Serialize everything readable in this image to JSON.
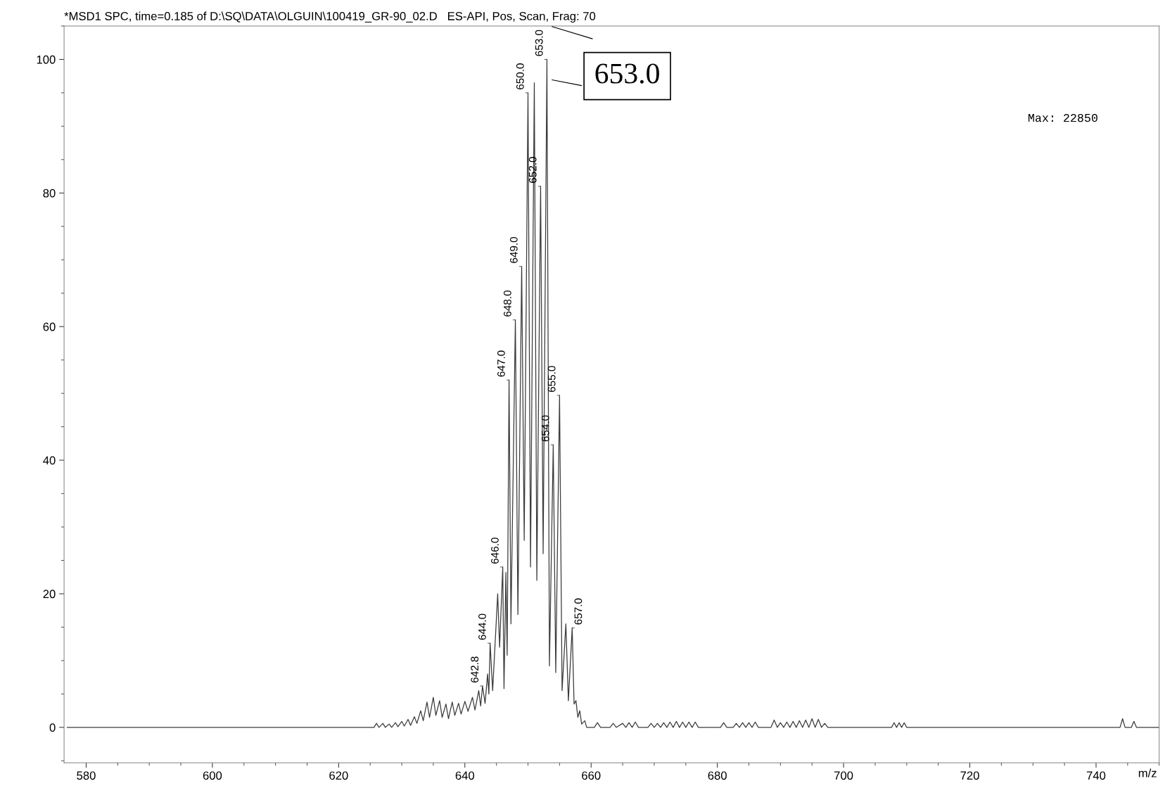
{
  "chart_data": {
    "type": "line",
    "title": "*MSD1 SPC, time=0.185 of D:\\SQ\\DATA\\OLGUIN\\100419_GR-90_02.D   ES-API, Pos, Scan, Frag: 70",
    "xlabel": "m/z",
    "x": [
      577,
      625.6,
      626,
      626.4,
      627,
      627.4,
      628,
      628.4,
      629,
      629.4,
      630,
      630.4,
      631,
      631.4,
      632,
      632.4,
      633,
      633.4,
      634,
      634.4,
      635,
      635.4,
      636,
      636.4,
      637,
      637.4,
      638,
      638.4,
      639,
      639.4,
      640,
      640.5,
      641.2,
      641.6,
      642.2,
      642.5,
      642.8,
      643.2,
      643.6,
      643.8,
      644.0,
      644.4,
      645.2,
      645.5,
      646.0,
      646.2,
      646.5,
      646.7,
      647.0,
      647.3,
      648.0,
      648.4,
      649.0,
      649.4,
      650.0,
      650.4,
      651.0,
      651.4,
      652.0,
      652.4,
      653.0,
      653.4,
      654.0,
      654.4,
      655.0,
      655.4,
      656.0,
      656.4,
      657.0,
      657.3,
      657.6,
      657.9,
      658.2,
      658.5,
      659.0,
      659.3,
      660.5,
      661,
      661.5,
      663,
      663.5,
      664,
      665,
      665.5,
      666,
      666.5,
      667,
      667.5,
      669,
      669.5,
      670,
      670.5,
      671,
      671.5,
      672,
      672.5,
      673,
      673.5,
      674,
      674.5,
      675,
      675.5,
      676,
      676.5,
      677,
      677.5,
      680.5,
      681,
      681.5,
      682.5,
      683,
      683.5,
      684,
      684.5,
      685,
      685.5,
      686,
      686.5,
      688.5,
      689,
      689.5,
      690,
      690.5,
      691,
      691.5,
      692,
      692.5,
      693,
      693.5,
      694,
      694.5,
      695,
      695.5,
      696,
      696.5,
      697,
      697.5,
      707.6,
      708,
      708.4,
      708.8,
      709.2,
      709.6,
      710,
      710.4,
      743.8,
      744.2,
      744.6,
      745.6,
      746,
      746.4,
      750
    ],
    "series": [
      {
        "color": "#3a3a3a",
        "values": [
          0,
          0,
          0.6,
          0,
          0.6,
          0,
          0.5,
          0,
          0.7,
          0.1,
          0.9,
          0.2,
          1.2,
          0.3,
          1.6,
          0.6,
          2.5,
          1,
          3.8,
          1.5,
          4.5,
          1.8,
          4,
          1.5,
          3.5,
          1.3,
          3.8,
          1.8,
          3.6,
          2,
          3.9,
          2.4,
          4.5,
          2.6,
          5.5,
          3.2,
          6.2,
          3.6,
          8,
          5,
          12.6,
          5.5,
          20,
          12,
          24,
          5.8,
          23.2,
          10.8,
          52,
          15.5,
          61,
          16.9,
          69,
          28,
          95,
          24,
          96.5,
          22,
          81,
          26,
          100,
          9.2,
          42.3,
          8.2,
          49.7,
          5.5,
          15.5,
          4,
          14.9,
          3.5,
          4,
          1.5,
          2.5,
          0.5,
          1,
          0,
          0,
          0.7,
          0,
          0,
          0.6,
          0,
          0.6,
          0,
          0.7,
          0,
          0.8,
          0,
          0,
          0.6,
          0,
          0.6,
          0,
          0.7,
          0,
          0.8,
          0,
          0.9,
          0,
          0.8,
          0,
          0.8,
          0,
          0.8,
          0,
          0,
          0,
          0.7,
          0,
          0,
          0.6,
          0,
          0.7,
          0,
          0.7,
          0,
          0.8,
          0,
          0,
          1.1,
          0,
          0.7,
          0,
          0.8,
          0,
          0.9,
          0,
          1,
          0,
          1.1,
          0,
          1.3,
          0,
          1.2,
          0,
          0.6,
          0,
          0,
          0.7,
          0,
          0.7,
          0,
          0.7,
          0,
          0,
          0,
          1.3,
          0,
          0,
          0.9,
          0,
          0
        ]
      }
    ],
    "xlim": [
      576.5,
      750
    ],
    "xticks": [
      580,
      600,
      620,
      640,
      660,
      680,
      700,
      720,
      740
    ],
    "ylim": [
      -5.3,
      105
    ],
    "yticks": [
      0,
      20,
      40,
      60,
      80,
      100
    ],
    "grid": false,
    "legend": false,
    "marker": "none",
    "line_style": "solid",
    "annotations": [
      {
        "text": "642.8",
        "x": 642.8,
        "y": 6.2
      },
      {
        "text": "644.0",
        "x": 644.0,
        "y": 12.6
      },
      {
        "text": "646.0",
        "x": 646.0,
        "y": 24
      },
      {
        "text": "647.0",
        "x": 647.0,
        "y": 52
      },
      {
        "text": "648.0",
        "x": 648.0,
        "y": 61
      },
      {
        "text": "649.0",
        "x": 649.0,
        "y": 69
      },
      {
        "text": "650.0",
        "x": 650.0,
        "y": 95
      },
      {
        "text": "652.0",
        "x": 652.0,
        "y": 81
      },
      {
        "text": "653.0",
        "x": 653.0,
        "y": 100
      },
      {
        "text": "654.0",
        "x": 654.0,
        "y": 42.3
      },
      {
        "text": "655.0",
        "x": 655.0,
        "y": 49.7
      },
      {
        "text": "657.0",
        "x": 657.0,
        "y": 14.9
      },
      "653.0",
      "Max: 22850"
    ]
  }
}
